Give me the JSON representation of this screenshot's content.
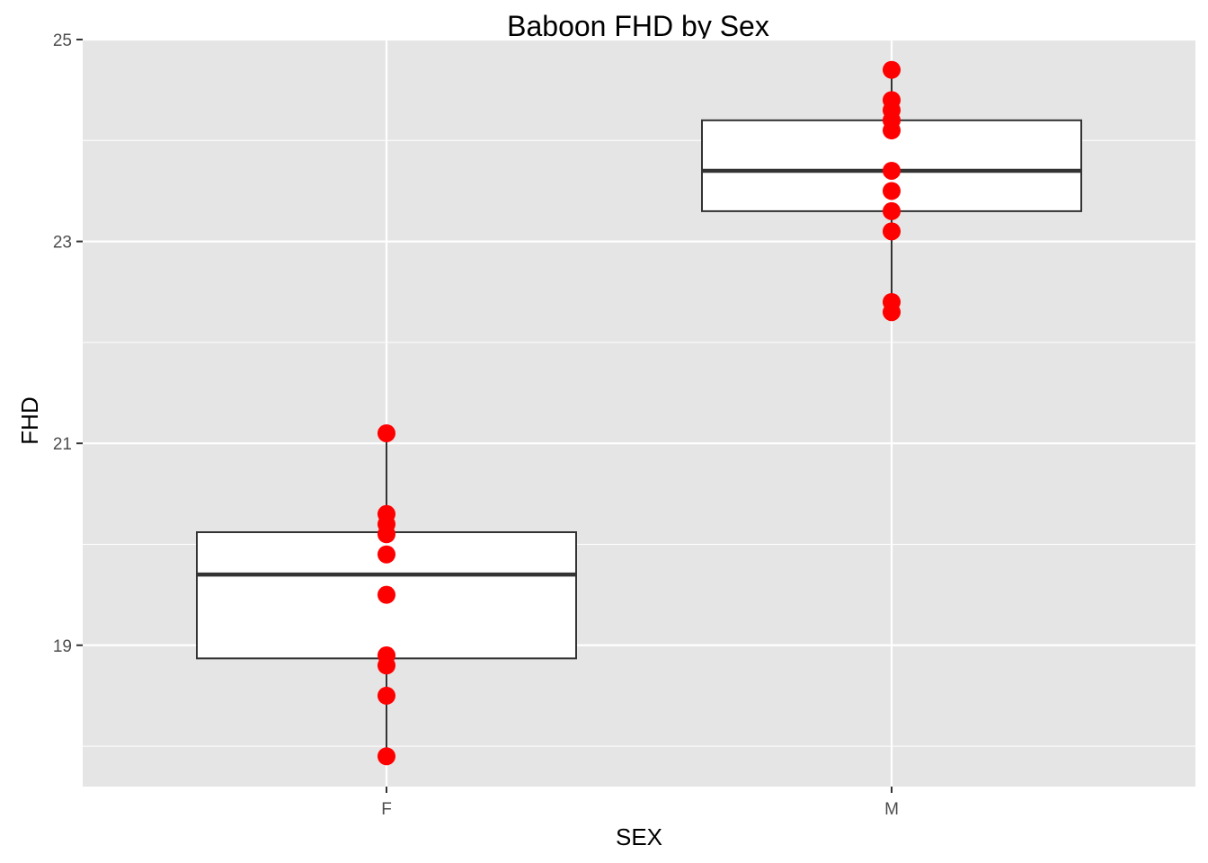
{
  "chart_data": {
    "type": "box",
    "title": "Baboon FHD by Sex",
    "xlabel": "SEX",
    "ylabel": "FHD",
    "categories": [
      "F",
      "M"
    ],
    "ylim": [
      17.6,
      25.0
    ],
    "yticks": [
      19,
      21,
      23,
      25
    ],
    "yminor_ticks": [
      18,
      20,
      22,
      24
    ],
    "grid": true,
    "point_color": "#ff0000",
    "panel_color": "#e5e5e5",
    "series": [
      {
        "category": "F",
        "box": {
          "whisker_low": 17.9,
          "q1": 18.87,
          "median": 19.7,
          "q3": 20.12,
          "whisker_high": 21.1
        },
        "points": [
          21.1,
          20.3,
          20.2,
          20.1,
          19.9,
          19.5,
          18.9,
          18.8,
          18.5,
          17.9
        ]
      },
      {
        "category": "M",
        "box": {
          "whisker_low": 22.3,
          "q1": 23.3,
          "median": 23.7,
          "q3": 24.2,
          "whisker_high": 24.7
        },
        "points": [
          24.7,
          24.4,
          24.3,
          24.2,
          24.1,
          23.7,
          23.5,
          23.3,
          23.1,
          22.4,
          22.3
        ]
      }
    ]
  }
}
